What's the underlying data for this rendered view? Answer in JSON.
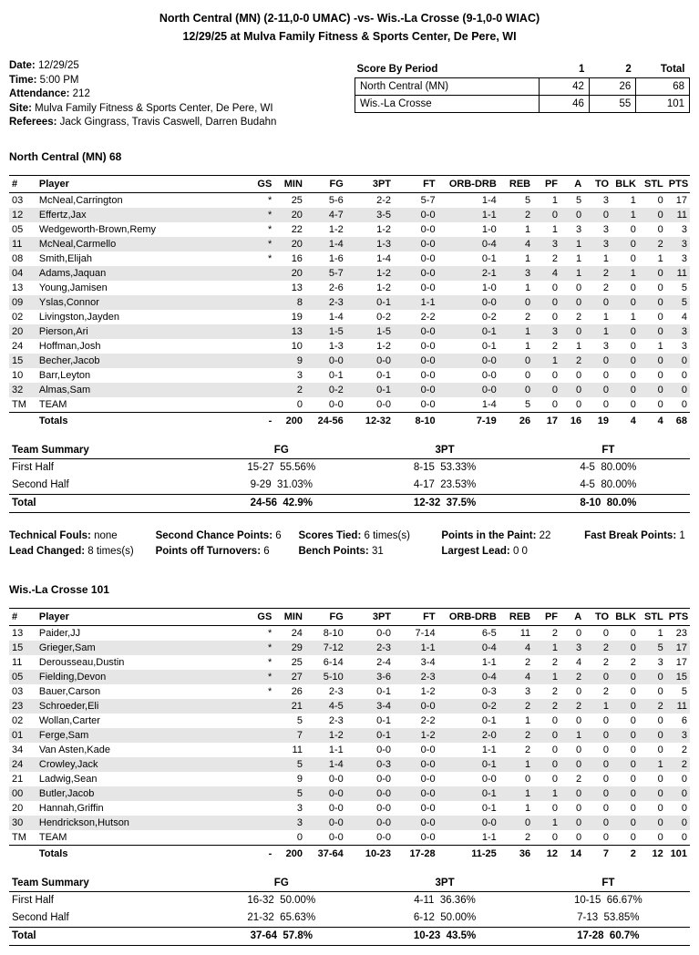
{
  "header": {
    "title_line1": "North Central (MN) (2-11,0-0 UMAC) -vs- Wis.-La Crosse (9-1,0-0 WIAC)",
    "title_line2": "12/29/25 at Mulva Family Fitness & Sports Center, De Pere, WI"
  },
  "game_info": {
    "date_label": "Date:",
    "date": "12/29/25",
    "time_label": "Time:",
    "time": "5:00 PM",
    "attendance_label": "Attendance:",
    "attendance": "212",
    "site_label": "Site:",
    "site": "Mulva Family Fitness & Sports Center, De Pere, WI",
    "referees_label": "Referees:",
    "referees": "Jack Gingrass, Travis Caswell, Darren Budahn"
  },
  "score_by_period": {
    "headers": [
      "Score By Period",
      "1",
      "2",
      "Total"
    ],
    "rows": [
      [
        "North Central (MN)",
        "42",
        "26",
        "68"
      ],
      [
        "Wis.-La Crosse",
        "46",
        "55",
        "101"
      ]
    ]
  },
  "box_headers": [
    "#",
    "Player",
    "GS",
    "MIN",
    "FG",
    "3PT",
    "FT",
    "ORB-DRB",
    "REB",
    "PF",
    "A",
    "TO",
    "BLK",
    "STL",
    "PTS"
  ],
  "teams": [
    {
      "heading": "North Central (MN) 68",
      "players": [
        [
          "03",
          "McNeal,Carrington",
          "*",
          "25",
          "5-6",
          "2-2",
          "5-7",
          "1-4",
          "5",
          "1",
          "5",
          "3",
          "1",
          "0",
          "17"
        ],
        [
          "12",
          "Effertz,Jax",
          "*",
          "20",
          "4-7",
          "3-5",
          "0-0",
          "1-1",
          "2",
          "0",
          "0",
          "0",
          "1",
          "0",
          "11"
        ],
        [
          "05",
          "Wedgeworth-Brown,Remy",
          "*",
          "22",
          "1-2",
          "1-2",
          "0-0",
          "1-0",
          "1",
          "1",
          "3",
          "3",
          "0",
          "0",
          "3"
        ],
        [
          "11",
          "McNeal,Carmello",
          "*",
          "20",
          "1-4",
          "1-3",
          "0-0",
          "0-4",
          "4",
          "3",
          "1",
          "3",
          "0",
          "2",
          "3"
        ],
        [
          "08",
          "Smith,Elijah",
          "*",
          "16",
          "1-6",
          "1-4",
          "0-0",
          "0-1",
          "1",
          "2",
          "1",
          "1",
          "0",
          "1",
          "3"
        ],
        [
          "04",
          "Adams,Jaquan",
          "",
          "20",
          "5-7",
          "1-2",
          "0-0",
          "2-1",
          "3",
          "4",
          "1",
          "2",
          "1",
          "0",
          "11"
        ],
        [
          "13",
          "Young,Jamisen",
          "",
          "13",
          "2-6",
          "1-2",
          "0-0",
          "1-0",
          "1",
          "0",
          "0",
          "2",
          "0",
          "0",
          "5"
        ],
        [
          "09",
          "Yslas,Connor",
          "",
          "8",
          "2-3",
          "0-1",
          "1-1",
          "0-0",
          "0",
          "0",
          "0",
          "0",
          "0",
          "0",
          "5"
        ],
        [
          "02",
          "Livingston,Jayden",
          "",
          "19",
          "1-4",
          "0-2",
          "2-2",
          "0-2",
          "2",
          "0",
          "2",
          "1",
          "1",
          "0",
          "4"
        ],
        [
          "20",
          "Pierson,Ari",
          "",
          "13",
          "1-5",
          "1-5",
          "0-0",
          "0-1",
          "1",
          "3",
          "0",
          "1",
          "0",
          "0",
          "3"
        ],
        [
          "24",
          "Hoffman,Josh",
          "",
          "10",
          "1-3",
          "1-2",
          "0-0",
          "0-1",
          "1",
          "2",
          "1",
          "3",
          "0",
          "1",
          "3"
        ],
        [
          "15",
          "Becher,Jacob",
          "",
          "9",
          "0-0",
          "0-0",
          "0-0",
          "0-0",
          "0",
          "1",
          "2",
          "0",
          "0",
          "0",
          "0"
        ],
        [
          "10",
          "Barr,Leyton",
          "",
          "3",
          "0-1",
          "0-1",
          "0-0",
          "0-0",
          "0",
          "0",
          "0",
          "0",
          "0",
          "0",
          "0"
        ],
        [
          "32",
          "Almas,Sam",
          "",
          "2",
          "0-2",
          "0-1",
          "0-0",
          "0-0",
          "0",
          "0",
          "0",
          "0",
          "0",
          "0",
          "0"
        ],
        [
          "TM",
          "TEAM",
          "",
          "0",
          "0-0",
          "0-0",
          "0-0",
          "1-4",
          "5",
          "0",
          "0",
          "0",
          "0",
          "0",
          "0"
        ]
      ],
      "totals": [
        "",
        "Totals",
        "-",
        "200",
        "24-56",
        "12-32",
        "8-10",
        "7-19",
        "26",
        "17",
        "16",
        "19",
        "4",
        "4",
        "68"
      ],
      "summary": {
        "headers": [
          "Team Summary",
          "FG",
          "3PT",
          "FT"
        ],
        "first_half": [
          "First Half",
          "15-27  55.56%",
          "8-15  53.33%",
          "4-5  80.00%"
        ],
        "second_half": [
          "Second Half",
          "9-29  31.03%",
          "4-17  23.53%",
          "4-5  80.00%"
        ],
        "total": [
          "Total",
          "24-56  42.9%",
          "12-32  37.5%",
          "8-10  80.0%"
        ]
      }
    },
    {
      "heading": "Wis.-La Crosse 101",
      "players": [
        [
          "13",
          "Paider,JJ",
          "*",
          "24",
          "8-10",
          "0-0",
          "7-14",
          "6-5",
          "11",
          "2",
          "0",
          "0",
          "0",
          "1",
          "23"
        ],
        [
          "15",
          "Grieger,Sam",
          "*",
          "29",
          "7-12",
          "2-3",
          "1-1",
          "0-4",
          "4",
          "1",
          "3",
          "2",
          "0",
          "5",
          "17"
        ],
        [
          "11",
          "Derousseau,Dustin",
          "*",
          "25",
          "6-14",
          "2-4",
          "3-4",
          "1-1",
          "2",
          "2",
          "4",
          "2",
          "2",
          "3",
          "17"
        ],
        [
          "05",
          "Fielding,Devon",
          "*",
          "27",
          "5-10",
          "3-6",
          "2-3",
          "0-4",
          "4",
          "1",
          "2",
          "0",
          "0",
          "0",
          "15"
        ],
        [
          "03",
          "Bauer,Carson",
          "*",
          "26",
          "2-3",
          "0-1",
          "1-2",
          "0-3",
          "3",
          "2",
          "0",
          "2",
          "0",
          "0",
          "5"
        ],
        [
          "23",
          "Schroeder,Eli",
          "",
          "21",
          "4-5",
          "3-4",
          "0-0",
          "0-2",
          "2",
          "2",
          "2",
          "1",
          "0",
          "2",
          "11"
        ],
        [
          "02",
          "Wollan,Carter",
          "",
          "5",
          "2-3",
          "0-1",
          "2-2",
          "0-1",
          "1",
          "0",
          "0",
          "0",
          "0",
          "0",
          "6"
        ],
        [
          "01",
          "Ferge,Sam",
          "",
          "7",
          "1-2",
          "0-1",
          "1-2",
          "2-0",
          "2",
          "0",
          "1",
          "0",
          "0",
          "0",
          "3"
        ],
        [
          "34",
          "Van Asten,Kade",
          "",
          "11",
          "1-1",
          "0-0",
          "0-0",
          "1-1",
          "2",
          "0",
          "0",
          "0",
          "0",
          "0",
          "2"
        ],
        [
          "24",
          "Crowley,Jack",
          "",
          "5",
          "1-4",
          "0-3",
          "0-0",
          "0-1",
          "1",
          "0",
          "0",
          "0",
          "0",
          "1",
          "2"
        ],
        [
          "21",
          "Ladwig,Sean",
          "",
          "9",
          "0-0",
          "0-0",
          "0-0",
          "0-0",
          "0",
          "0",
          "2",
          "0",
          "0",
          "0",
          "0"
        ],
        [
          "00",
          "Butler,Jacob",
          "",
          "5",
          "0-0",
          "0-0",
          "0-0",
          "0-1",
          "1",
          "1",
          "0",
          "0",
          "0",
          "0",
          "0"
        ],
        [
          "20",
          "Hannah,Griffin",
          "",
          "3",
          "0-0",
          "0-0",
          "0-0",
          "0-1",
          "1",
          "0",
          "0",
          "0",
          "0",
          "0",
          "0"
        ],
        [
          "30",
          "Hendrickson,Hutson",
          "",
          "3",
          "0-0",
          "0-0",
          "0-0",
          "0-0",
          "0",
          "1",
          "0",
          "0",
          "0",
          "0",
          "0"
        ],
        [
          "TM",
          "TEAM",
          "",
          "0",
          "0-0",
          "0-0",
          "0-0",
          "1-1",
          "2",
          "0",
          "0",
          "0",
          "0",
          "0",
          "0"
        ]
      ],
      "totals": [
        "",
        "Totals",
        "-",
        "200",
        "37-64",
        "10-23",
        "17-28",
        "11-25",
        "36",
        "12",
        "14",
        "7",
        "2",
        "12",
        "101"
      ],
      "summary": {
        "headers": [
          "Team Summary",
          "FG",
          "3PT",
          "FT"
        ],
        "first_half": [
          "First Half",
          "16-32  50.00%",
          "4-11  36.36%",
          "10-15  66.67%"
        ],
        "second_half": [
          "Second Half",
          "21-32  65.63%",
          "6-12  50.00%",
          "7-13  53.85%"
        ],
        "total": [
          "Total",
          "37-64  57.8%",
          "10-23  43.5%",
          "17-28  60.7%"
        ]
      }
    }
  ],
  "misc": {
    "items": [
      {
        "label": "Technical Fouls:",
        "value": "none"
      },
      {
        "label": "Second Chance Points:",
        "value": "6"
      },
      {
        "label": "Scores Tied:",
        "value": "6 times(s)"
      },
      {
        "label": "Points in the Paint:",
        "value": "22"
      },
      {
        "label": "Fast Break Points:",
        "value": "1"
      },
      {
        "label": "Lead Changed:",
        "value": "8 times(s)"
      },
      {
        "label": "Points off Turnovers:",
        "value": "6"
      },
      {
        "label": "Bench Points:",
        "value": "31"
      },
      {
        "label": "Largest Lead:",
        "value": "0 0"
      }
    ]
  },
  "colors": {
    "stripe": "#e6e6e6",
    "text": "#000000",
    "background": "#ffffff"
  }
}
